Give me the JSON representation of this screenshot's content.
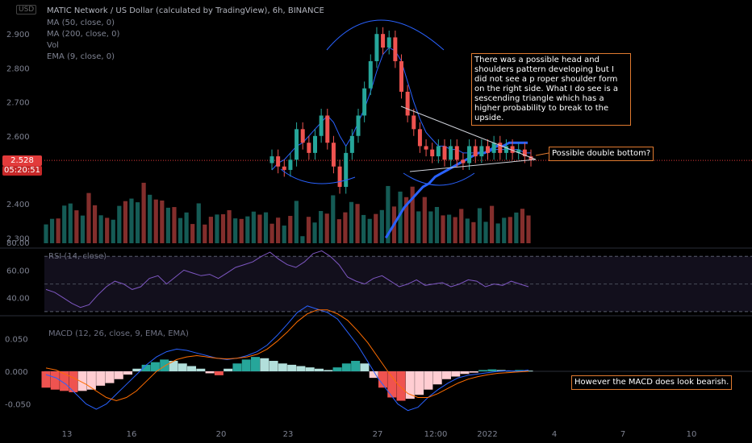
{
  "header": {
    "symbol_box": "USD",
    "title": "MATIC Network / US Dollar (calculated by TradingView), 6h, BINANCE",
    "indicators": [
      "MA (50, close, 0)",
      "MA (200, close, 0)",
      "Vol",
      "EMA (9, close, 0)"
    ]
  },
  "price_tag": {
    "price": "2.528",
    "countdown": "05:20:51"
  },
  "annotations": {
    "hs_note": "There was a possible head and shoulders pattern developing but I did not see a p roper shoulder form on the right side. What I do see is a sescending triangle which has a higher probability to break to the upside.",
    "double_bottom": "Possible double bottom?",
    "macd_note": "However the MACD does look bearish."
  },
  "colors": {
    "up": "#26a69a",
    "down": "#ef5350",
    "ema": "#2962ff",
    "ma": "#2962ff",
    "note_border": "#e07a2f"
  },
  "chart_data": [
    {
      "type": "candlestick",
      "name": "MATIC Network / US Dollar (calculated by TradingView), 6h, BINANCE",
      "ylim": [
        2.27,
        3.0
      ],
      "y_ticks": [
        "2.900",
        "2.800",
        "2.700",
        "2.600",
        "2.400",
        "2.300"
      ],
      "x_ticks": [
        "13",
        "16",
        "20",
        "23",
        "27",
        "12:00",
        "2022",
        "4",
        "7",
        "10"
      ],
      "candles": [
        [
          2.52,
          2.54
        ],
        [
          2.54,
          2.51
        ],
        [
          2.51,
          2.5
        ],
        [
          2.5,
          2.53
        ],
        [
          2.53,
          2.62
        ],
        [
          2.62,
          2.58
        ],
        [
          2.58,
          2.55
        ],
        [
          2.55,
          2.6
        ],
        [
          2.6,
          2.66
        ],
        [
          2.66,
          2.58
        ],
        [
          2.58,
          2.51
        ],
        [
          2.51,
          2.45
        ],
        [
          2.45,
          2.55
        ],
        [
          2.55,
          2.6
        ],
        [
          2.6,
          2.66
        ],
        [
          2.66,
          2.74
        ],
        [
          2.74,
          2.82
        ],
        [
          2.82,
          2.9
        ],
        [
          2.9,
          2.86
        ],
        [
          2.86,
          2.89
        ],
        [
          2.89,
          2.82
        ],
        [
          2.82,
          2.73
        ],
        [
          2.73,
          2.66
        ],
        [
          2.66,
          2.62
        ],
        [
          2.62,
          2.57
        ],
        [
          2.57,
          2.56
        ],
        [
          2.56,
          2.54
        ],
        [
          2.54,
          2.57
        ],
        [
          2.57,
          2.53
        ],
        [
          2.53,
          2.57
        ],
        [
          2.57,
          2.53
        ],
        [
          2.53,
          2.52
        ],
        [
          2.52,
          2.57
        ],
        [
          2.57,
          2.54
        ],
        [
          2.54,
          2.57
        ],
        [
          2.57,
          2.55
        ],
        [
          2.55,
          2.58
        ],
        [
          2.58,
          2.55
        ],
        [
          2.55,
          2.57
        ],
        [
          2.57,
          2.55
        ],
        [
          2.55,
          2.56
        ],
        [
          2.56,
          2.54
        ],
        [
          2.54,
          2.53
        ]
      ],
      "ema_9": [
        2.5,
        2.52,
        2.53,
        2.55,
        2.57,
        2.58,
        2.6,
        2.62,
        2.64,
        2.66,
        2.64,
        2.6,
        2.57,
        2.6,
        2.64,
        2.68,
        2.73,
        2.79,
        2.84,
        2.86,
        2.85,
        2.82,
        2.76,
        2.7,
        2.65,
        2.61,
        2.59,
        2.57,
        2.57,
        2.56,
        2.56,
        2.55,
        2.55,
        2.55,
        2.55,
        2.55,
        2.56,
        2.56,
        2.56,
        2.56,
        2.56,
        2.55,
        2.55
      ],
      "ma_long": [
        null,
        null,
        null,
        null,
        null,
        null,
        null,
        null,
        null,
        null,
        null,
        null,
        null,
        null,
        null,
        null,
        null,
        null,
        null,
        2.3,
        2.33,
        2.36,
        2.39,
        2.41,
        2.43,
        2.45,
        2.46,
        2.48,
        2.49,
        2.5,
        2.51,
        2.52,
        2.53,
        2.54,
        2.55,
        2.55,
        2.56,
        2.57,
        2.57,
        2.58,
        2.58,
        2.58,
        2.58
      ],
      "volume": [
        0.45,
        0.38,
        0.52,
        0.6,
        0.75,
        0.55,
        0.48,
        0.9,
        0.62,
        0.55,
        0.4,
        0.52,
        0.58,
        0.95,
        0.7,
        0.82,
        0.98,
        0.88,
        0.75,
        0.72,
        0.66,
        0.58,
        0.52,
        0.48,
        0.45,
        0.62,
        0.4,
        0.42,
        0.55,
        0.48,
        0.58,
        0.44,
        0.4,
        0.52,
        0.5,
        0.62,
        0.48,
        0.45,
        0.4,
        0.36,
        0.44,
        0.78,
        0.12
      ]
    },
    {
      "type": "line",
      "name": "RSI (14, close)",
      "ylim": [
        27,
        76
      ],
      "y_ticks": [
        "80.00",
        "60.00",
        "40.00"
      ],
      "values": [
        46,
        44,
        40,
        36,
        33,
        35,
        42,
        48,
        52,
        50,
        46,
        48,
        54,
        56,
        50,
        55,
        60,
        58,
        56,
        57,
        54,
        58,
        62,
        64,
        66,
        70,
        73,
        68,
        64,
        62,
        66,
        72,
        74,
        70,
        64,
        55,
        52,
        50,
        54,
        56,
        52,
        48,
        50,
        53,
        49,
        50,
        51,
        48,
        50,
        53,
        52,
        48,
        50,
        49,
        52,
        50,
        48
      ]
    },
    {
      "type": "bar",
      "name": "MACD (12, 26, close, 9, EMA, EMA)",
      "ylim": [
        -0.085,
        0.085
      ],
      "y_ticks": [
        "0.050",
        "0.000",
        "-0.050"
      ],
      "histogram": [
        -0.025,
        -0.028,
        -0.03,
        -0.032,
        -0.03,
        -0.028,
        -0.022,
        -0.018,
        -0.012,
        -0.005,
        0.004,
        0.01,
        0.014,
        0.018,
        0.016,
        0.012,
        0.008,
        0.004,
        -0.003,
        -0.006,
        0.004,
        0.012,
        0.018,
        0.022,
        0.02,
        0.016,
        0.012,
        0.01,
        0.008,
        0.006,
        0.004,
        0.002,
        0.006,
        0.012,
        0.016,
        0.012,
        -0.01,
        -0.025,
        -0.04,
        -0.045,
        -0.042,
        -0.036,
        -0.028,
        -0.02,
        -0.012,
        -0.008,
        -0.004,
        -0.002,
        0.002,
        0.003,
        0.002,
        0.001,
        0.002,
        0.001
      ],
      "macd_line": [
        -0.005,
        -0.01,
        -0.02,
        -0.035,
        -0.05,
        -0.058,
        -0.05,
        -0.035,
        -0.02,
        -0.005,
        0.01,
        0.022,
        0.03,
        0.034,
        0.032,
        0.028,
        0.024,
        0.02,
        0.018,
        0.02,
        0.024,
        0.03,
        0.04,
        0.055,
        0.072,
        0.09,
        0.1,
        0.095,
        0.09,
        0.08,
        0.06,
        0.04,
        0.015,
        -0.01,
        -0.03,
        -0.05,
        -0.06,
        -0.055,
        -0.04,
        -0.028,
        -0.018,
        -0.01,
        -0.006,
        -0.004,
        -0.002,
        0.0,
        0.001,
        0.0,
        0.002
      ],
      "signal_line": [
        0.005,
        0.002,
        -0.005,
        -0.012,
        -0.02,
        -0.03,
        -0.04,
        -0.045,
        -0.04,
        -0.03,
        -0.015,
        0.0,
        0.01,
        0.018,
        0.022,
        0.024,
        0.022,
        0.02,
        0.019,
        0.02,
        0.022,
        0.026,
        0.034,
        0.046,
        0.06,
        0.076,
        0.088,
        0.094,
        0.094,
        0.088,
        0.078,
        0.062,
        0.044,
        0.022,
        0.0,
        -0.02,
        -0.034,
        -0.04,
        -0.04,
        -0.034,
        -0.026,
        -0.018,
        -0.012,
        -0.008,
        -0.005,
        -0.003,
        -0.002,
        -0.001,
        0.0
      ]
    }
  ]
}
